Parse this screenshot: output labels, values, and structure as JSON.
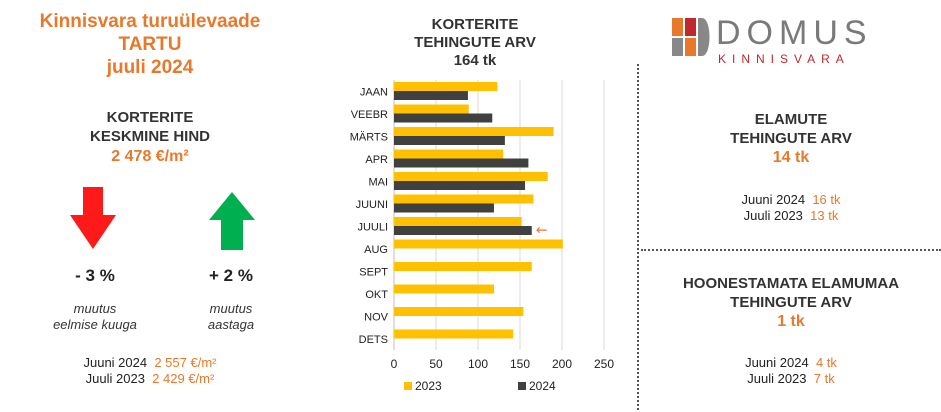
{
  "left": {
    "title_line1": "Kinnisvara turuülevaade",
    "title_line2": "TARTU",
    "title_line3": "juuli 2024",
    "section_line1": "KORTERITE",
    "section_line2": "KESKMINE HIND",
    "avg_price": "2 478 €/m²",
    "change_month": "- 3 %",
    "change_month_label1": "muutus",
    "change_month_label2": "eelmise kuuga",
    "change_year": "+ 2 %",
    "change_year_label1": "muutus",
    "change_year_label2": "aastaga",
    "cmp1_label": "Juuni 2024",
    "cmp1_value": "2 557 €/m²",
    "cmp2_label": "Juuli 2023",
    "cmp2_value": "2 429 €/m²",
    "down_color": "#ff1a1a",
    "up_color": "#00b050"
  },
  "chart_header": {
    "line1": "KORTERITE",
    "line2": "TEHINGUTE ARV",
    "value": "164 tk"
  },
  "chart_data": {
    "type": "bar",
    "orientation": "horizontal",
    "categories": [
      "JAAN",
      "VEEBR",
      "MÄRTS",
      "APR",
      "MAI",
      "JUUNI",
      "JUULI",
      "AUG",
      "SEPT",
      "OKT",
      "NOV",
      "DETS"
    ],
    "series": [
      {
        "name": "2023",
        "color": "#ffc000",
        "values": [
          123,
          89,
          190,
          130,
          183,
          166,
          152,
          201,
          164,
          119,
          154,
          142
        ]
      },
      {
        "name": "2024",
        "color": "#404040",
        "values": [
          88,
          117,
          132,
          160,
          156,
          119,
          164,
          null,
          null,
          null,
          null,
          null
        ]
      }
    ],
    "xlim": [
      0,
      250
    ],
    "xticks": [
      0,
      50,
      100,
      150,
      200,
      250
    ],
    "grid": true,
    "legend": "bottom",
    "annotation": {
      "category": "JUULI",
      "symbol": "←",
      "color": "#e8792b"
    }
  },
  "logo": {
    "name": "DOMUS",
    "sub": "KINNISVARA",
    "colors": [
      "#e8792b",
      "#c0282d",
      "#888888"
    ]
  },
  "right": {
    "elamute_line1": "ELAMUTE",
    "elamute_line2": "TEHINGUTE ARV",
    "elamute_value": "14 tk",
    "elamute_cmp1_label": "Juuni 2024",
    "elamute_cmp1_value": "16 tk",
    "elamute_cmp2_label": "Juuli 2023",
    "elamute_cmp2_value": "13 tk",
    "maa_line1": "HOONESTAMATA ELAMUMAA",
    "maa_line2": "TEHINGUTE ARV",
    "maa_value": "1 tk",
    "maa_cmp1_label": "Juuni 2024",
    "maa_cmp1_value": "4 tk",
    "maa_cmp2_label": "Juuli 2023",
    "maa_cmp2_value": "7 tk"
  }
}
